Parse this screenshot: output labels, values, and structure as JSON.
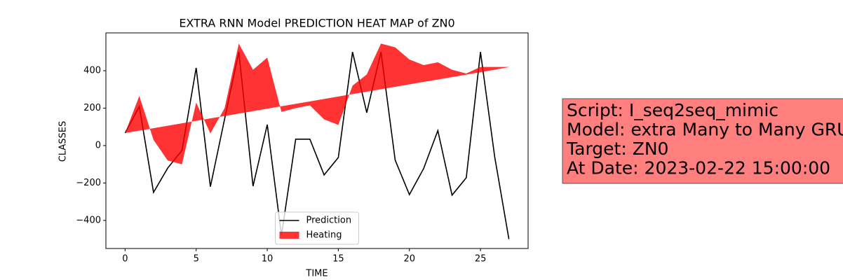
{
  "chart_data": {
    "type": "line",
    "title": "EXTRA RNN Model PREDICTION HEAT MAP of ZN0",
    "x_label": "TIME",
    "y_label": "CLASSES",
    "x": [
      0,
      1,
      2,
      3,
      4,
      5,
      6,
      7,
      8,
      9,
      10,
      11,
      12,
      13,
      14,
      15,
      16,
      17,
      18,
      19,
      20,
      21,
      22,
      23,
      24,
      25,
      26,
      27
    ],
    "series": [
      {
        "name": "Prediction",
        "color": "#000000",
        "values": [
          67,
          209,
          -250,
          -120,
          -26,
          415,
          -220,
          142,
          500,
          -217,
          112,
          -480,
          34,
          34,
          -157,
          -64,
          500,
          176,
          500,
          -78,
          -262,
          -123,
          80,
          -265,
          -172,
          500,
          -60,
          -500
        ]
      },
      {
        "name": "Heating",
        "color": "#ff0000",
        "alpha": 0.8,
        "values": [
          67,
          265,
          30,
          -80,
          -100,
          230,
          65,
          200,
          545,
          405,
          470,
          180,
          200,
          215,
          140,
          110,
          320,
          380,
          545,
          525,
          460,
          430,
          445,
          405,
          385,
          420,
          420,
          420
        ],
        "baseline": [
          67,
          80,
          93,
          106,
          119,
          132,
          145,
          158,
          171,
          184,
          197,
          210,
          223,
          236,
          249,
          262,
          275,
          288,
          301,
          314,
          327,
          340,
          353,
          366,
          379,
          392,
          405,
          419
        ]
      }
    ],
    "xlim": [
      -1.35,
      28.35
    ],
    "ylim": [
      -550,
      602
    ],
    "xticks": [
      0,
      5,
      10,
      15,
      20,
      25
    ],
    "yticks": [
      {
        "value": -400,
        "label": "−400"
      },
      {
        "value": -200,
        "label": "−200"
      },
      0,
      200,
      400
    ],
    "legend": "lower center",
    "annotation": [
      "Script: I_seq2seq_mimic",
      "Model: extra Many to Many GRU",
      "Target: ZN0",
      "At Date: 2023-02-22 15:00:00"
    ]
  }
}
